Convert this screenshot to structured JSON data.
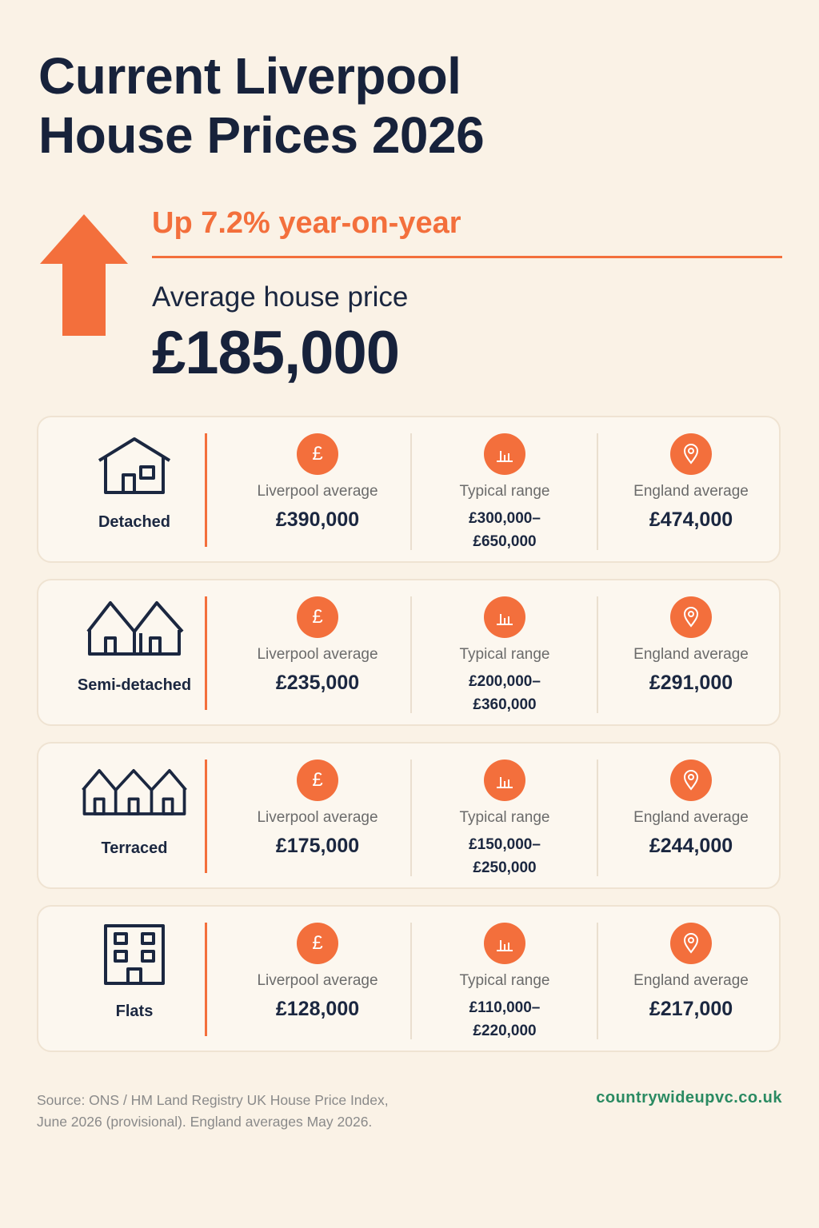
{
  "title": {
    "line1": "Current Liverpool",
    "line2": "House Prices 2026"
  },
  "headline": {
    "change": "Up 7.2% year-on-year",
    "average_label": "Average house price",
    "average_value": "£185,000",
    "arrow_icon": "up-arrow-icon"
  },
  "colors": {
    "accent": "#f36f3c",
    "navy": "#17223b",
    "background": "#faf2e6",
    "site": "#2a8a62"
  },
  "stat_labels": {
    "liverpool": "Liverpool average",
    "range": "Typical range",
    "england": "England average"
  },
  "stat_icons": {
    "liverpool": "pound-icon",
    "range": "bar-chart-icon",
    "england": "location-pin-icon"
  },
  "cards": [
    {
      "type": "Detached",
      "icon": "detached-house-icon",
      "liverpool_average": "£390,000",
      "range_low": "£300,000–",
      "range_high": "£650,000",
      "england_average": "£474,000"
    },
    {
      "type": "Semi-detached",
      "icon": "semi-detached-house-icon",
      "liverpool_average": "£235,000",
      "range_low": "£200,000–",
      "range_high": "£360,000",
      "england_average": "£291,000"
    },
    {
      "type": "Terraced",
      "icon": "terraced-house-icon",
      "liverpool_average": "£175,000",
      "range_low": "£150,000–",
      "range_high": "£250,000",
      "england_average": "£244,000"
    },
    {
      "type": "Flats",
      "icon": "flats-building-icon",
      "liverpool_average": "£128,000",
      "range_low": "£110,000–",
      "range_high": "£220,000",
      "england_average": "£217,000"
    }
  ],
  "footer": {
    "source_line1": "Source: ONS / HM Land Registry UK House Price Index,",
    "source_line2": "June 2026 (provisional). England averages May 2026.",
    "site": "countrywideupvc.co.uk"
  }
}
